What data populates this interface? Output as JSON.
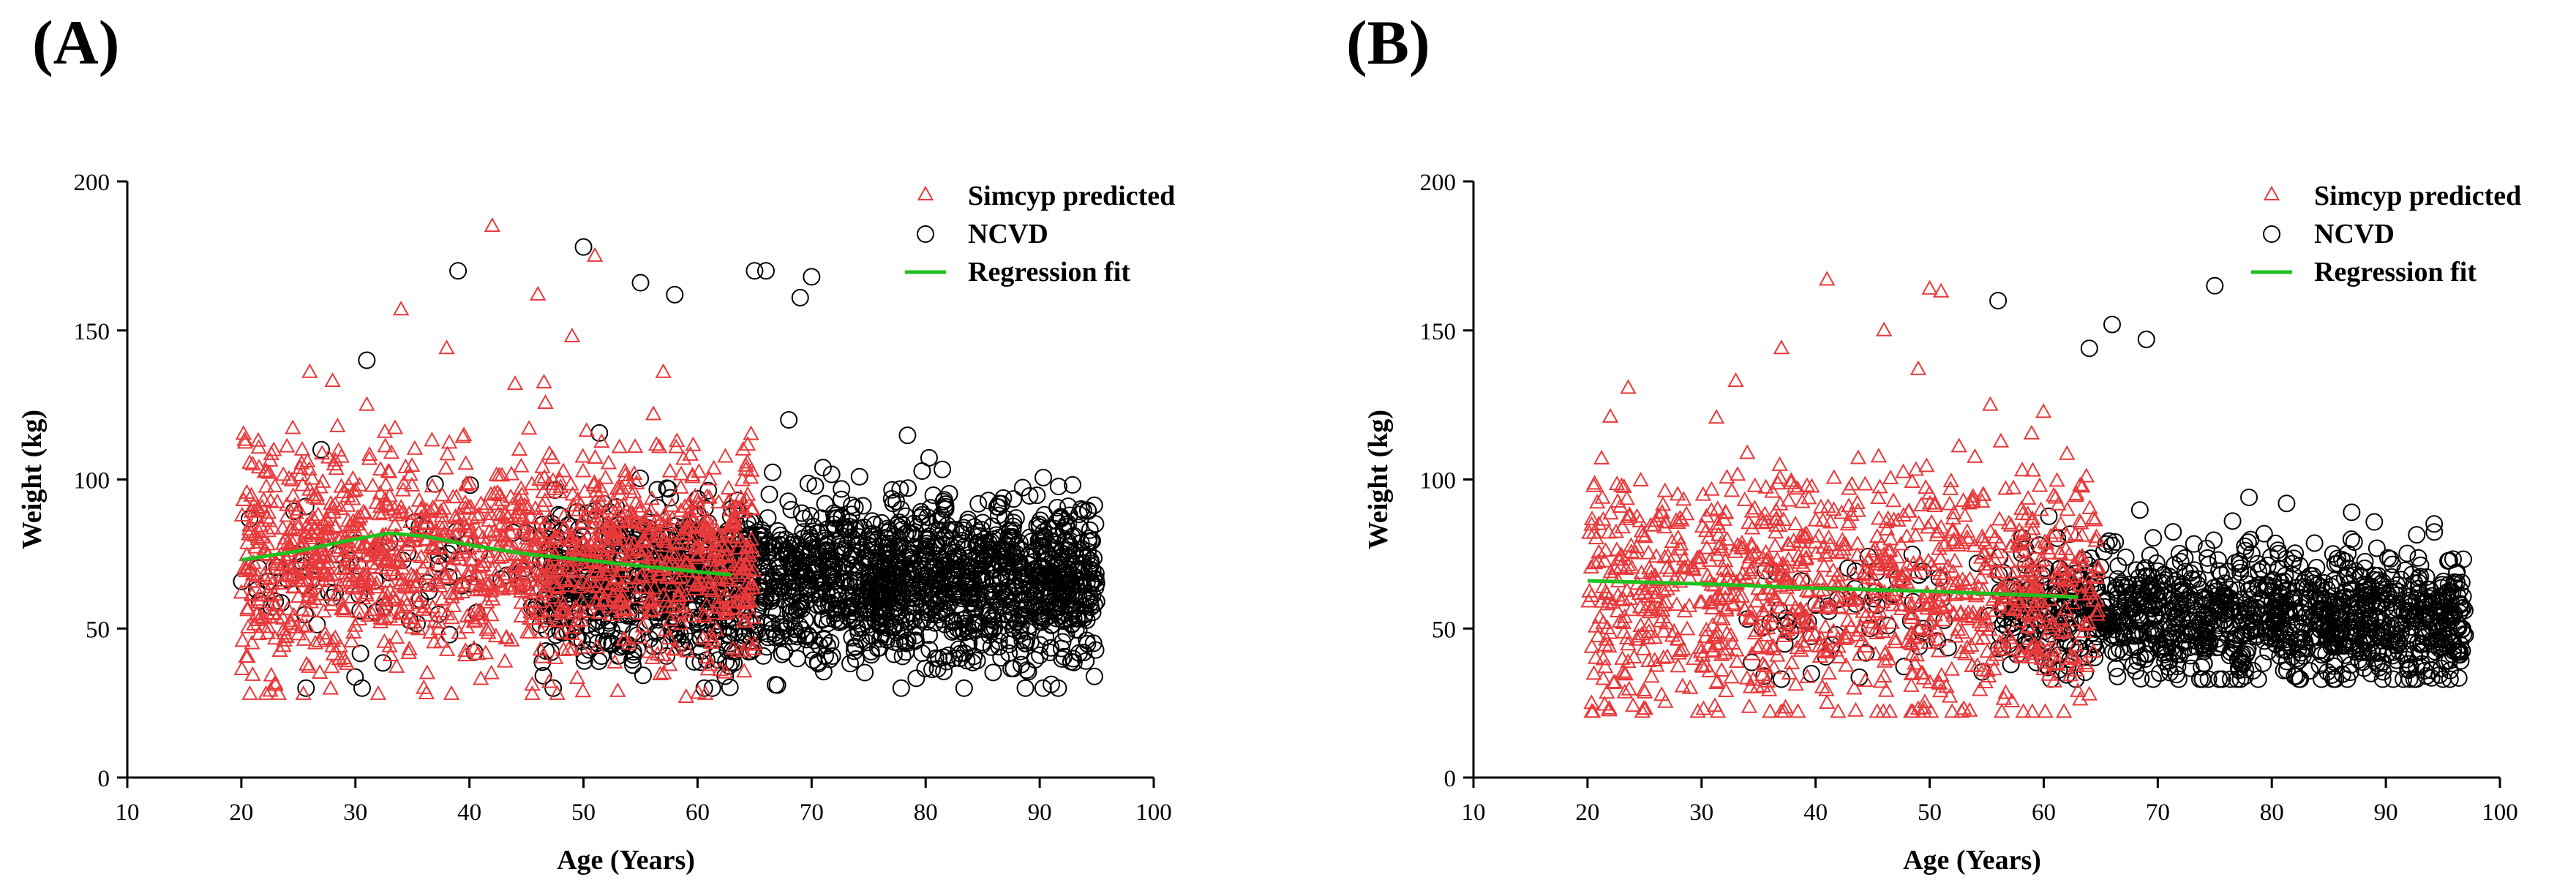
{
  "panels": [
    {
      "label": "(A)",
      "legend": {
        "simcyp": "Simcyp predicted",
        "ncvd": "NCVD",
        "fit": "Regression fit"
      }
    },
    {
      "label": "(B)",
      "legend": {
        "simcyp": "Simcyp predicted",
        "ncvd": "NCVD",
        "fit": "Regression fit"
      }
    }
  ],
  "colors": {
    "simcyp": "#e8393b",
    "ncvd": "#000000",
    "fit": "#1fc11f",
    "axis": "#000000"
  },
  "chart_data": [
    {
      "type": "scatter",
      "title": "",
      "xlabel": "Age (Years)",
      "ylabel": "Weight (kg)",
      "xlim": [
        10,
        100
      ],
      "ylim": [
        0,
        200
      ],
      "xticks": [
        10,
        20,
        30,
        40,
        50,
        60,
        70,
        80,
        90,
        100
      ],
      "yticks": [
        0,
        50,
        100,
        150,
        200
      ],
      "legend_position": "top-right",
      "grid": false,
      "series": [
        {
          "name": "Simcyp predicted",
          "marker": "triangle",
          "sampled_points": true,
          "age_range": [
            20,
            65
          ],
          "weight_range": [
            28,
            186
          ],
          "points": [
            [
              42,
              185
            ],
            [
              34,
              157
            ],
            [
              49,
              148
            ],
            [
              46,
              162
            ],
            [
              38,
              144
            ],
            [
              51,
              175
            ],
            [
              26,
              136
            ],
            [
              28,
              133
            ],
            [
              57,
              136
            ],
            [
              44,
              132
            ],
            [
              24,
              111
            ],
            [
              31,
              125
            ],
            [
              64,
              110
            ],
            [
              21,
              105
            ],
            [
              20,
              62
            ],
            [
              23,
              31
            ],
            [
              25,
              48
            ],
            [
              29,
              40
            ],
            [
              33,
              44
            ],
            [
              36,
              30
            ],
            [
              41,
              33
            ],
            [
              47,
              32
            ],
            [
              53,
              29
            ],
            [
              59,
              27
            ],
            [
              62,
              36
            ]
          ],
          "count": 1400,
          "center_mean": 74,
          "spread": 18
        },
        {
          "name": "NCVD",
          "marker": "circle",
          "sampled_points": true,
          "age_range": [
            20,
            95
          ],
          "weight_range": [
            30,
            180
          ],
          "points": [
            [
              39,
              170
            ],
            [
              50,
              178
            ],
            [
              55,
              166
            ],
            [
              58,
              162
            ],
            [
              65,
              170
            ],
            [
              66,
              170
            ],
            [
              69,
              161
            ],
            [
              70,
              168
            ],
            [
              31,
              140
            ],
            [
              27,
              110
            ],
            [
              68,
              120
            ],
            [
              71,
              104
            ],
            [
              90,
              84
            ],
            [
              92,
              74
            ],
            [
              94,
              55
            ],
            [
              90,
              41
            ],
            [
              82,
              41
            ],
            [
              67,
              31
            ],
            [
              88,
              52
            ],
            [
              86,
              80
            ]
          ],
          "count": 2100,
          "center_mean": 66,
          "spread": 13
        },
        {
          "name": "Regression fit",
          "type": "line",
          "x": [
            20,
            25,
            30,
            33,
            36,
            40,
            45,
            50,
            55,
            60,
            63
          ],
          "y": [
            73,
            76,
            80,
            82,
            81,
            78,
            75,
            73,
            71,
            69,
            68
          ]
        }
      ]
    },
    {
      "type": "scatter",
      "title": "",
      "xlabel": "Age (Years)",
      "ylabel": "Weight (kg)",
      "xlim": [
        10,
        100
      ],
      "ylim": [
        0,
        200
      ],
      "xticks": [
        10,
        20,
        30,
        40,
        50,
        60,
        70,
        80,
        90,
        100
      ],
      "yticks": [
        0,
        50,
        100,
        150,
        200
      ],
      "legend_position": "top-right",
      "grid": false,
      "series": [
        {
          "name": "Simcyp predicted",
          "marker": "triangle",
          "sampled_points": true,
          "age_range": [
            20,
            65
          ],
          "weight_range": [
            22,
            168
          ],
          "points": [
            [
              41,
              167
            ],
            [
              50,
              164
            ],
            [
              51,
              163
            ],
            [
              46,
              150
            ],
            [
              37,
              144
            ],
            [
              49,
              137
            ],
            [
              33,
              133
            ],
            [
              22,
              121
            ],
            [
              21,
              85
            ],
            [
              24,
              24
            ],
            [
              29,
              30
            ],
            [
              36,
              22
            ],
            [
              41,
              25
            ],
            [
              49,
              23
            ],
            [
              53,
              23
            ],
            [
              59,
              22
            ],
            [
              63,
              29
            ]
          ],
          "count": 1100,
          "center_mean": 63,
          "spread": 21
        },
        {
          "name": "NCVD",
          "marker": "circle",
          "sampled_points": true,
          "age_range": [
            34,
            97
          ],
          "weight_range": [
            33,
            165
          ],
          "points": [
            [
              56,
              160
            ],
            [
              66,
              152
            ],
            [
              64,
              144
            ],
            [
              69,
              147
            ],
            [
              75,
              165
            ],
            [
              87,
              89
            ],
            [
              78,
              94
            ],
            [
              96,
              55
            ],
            [
              95,
              61
            ],
            [
              92,
              36
            ],
            [
              93,
              42
            ],
            [
              82,
              34
            ],
            [
              90,
              57
            ],
            [
              37,
              33
            ]
          ],
          "count": 1300,
          "center_mean": 54,
          "spread": 11
        },
        {
          "name": "Regression fit",
          "type": "line",
          "x": [
            20,
            30,
            40,
            50,
            60,
            63
          ],
          "y": [
            66,
            65,
            63.5,
            62.5,
            61,
            60.5
          ]
        }
      ]
    }
  ]
}
